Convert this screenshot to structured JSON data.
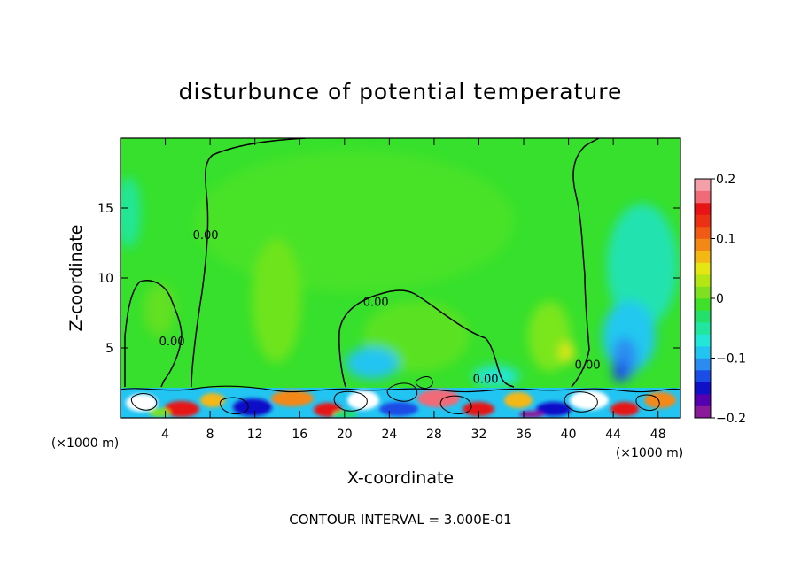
{
  "chart_data": {
    "type": "heatmap",
    "title": "disturbunce of potential temperature",
    "xlabel": "X-coordinate",
    "ylabel": "Z-coordinate",
    "x_unit": "(×1000 m)",
    "x_unit_right": "(×1000 m)",
    "xlim": [
      0,
      50
    ],
    "ylim": [
      0,
      20
    ],
    "x_ticks": [
      4,
      8,
      12,
      16,
      20,
      24,
      28,
      32,
      36,
      40,
      44,
      48
    ],
    "y_ticks": [
      5,
      10,
      15
    ],
    "colorbar": {
      "range": [
        -0.2,
        0.2
      ],
      "ticks": [
        {
          "value": 0.2,
          "label": "0.2"
        },
        {
          "value": 0.1,
          "label": "0.1"
        },
        {
          "value": 0,
          "label": "0"
        },
        {
          "value": -0.1,
          "label": "−0.1"
        },
        {
          "value": -0.2,
          "label": "−0.2"
        }
      ],
      "colors": [
        "#8a1a9a",
        "#5500b0",
        "#1010c8",
        "#1a4ce6",
        "#2a8cf0",
        "#22c4f2",
        "#22e6d8",
        "#20e6a0",
        "#22e06a",
        "#3ee02a",
        "#7ee020",
        "#b4e614",
        "#e6e614",
        "#f4b814",
        "#f48814",
        "#f05a14",
        "#ec3014",
        "#e61414",
        "#f06a78",
        "#f4a0a8"
      ]
    },
    "contour_labels": [
      {
        "text": "0.00",
        "x": 7.6,
        "z": 12.8
      },
      {
        "text": "0.00",
        "x": 4.6,
        "z": 5.2
      },
      {
        "text": "0.00",
        "x": 22.8,
        "z": 8.0
      },
      {
        "text": "0.00",
        "x": 41.7,
        "z": 3.5
      },
      {
        "text": "0.00",
        "x": 32.6,
        "z": 2.5
      }
    ],
    "footer": "CONTOUR INTERVAL = 3.000E-01"
  }
}
